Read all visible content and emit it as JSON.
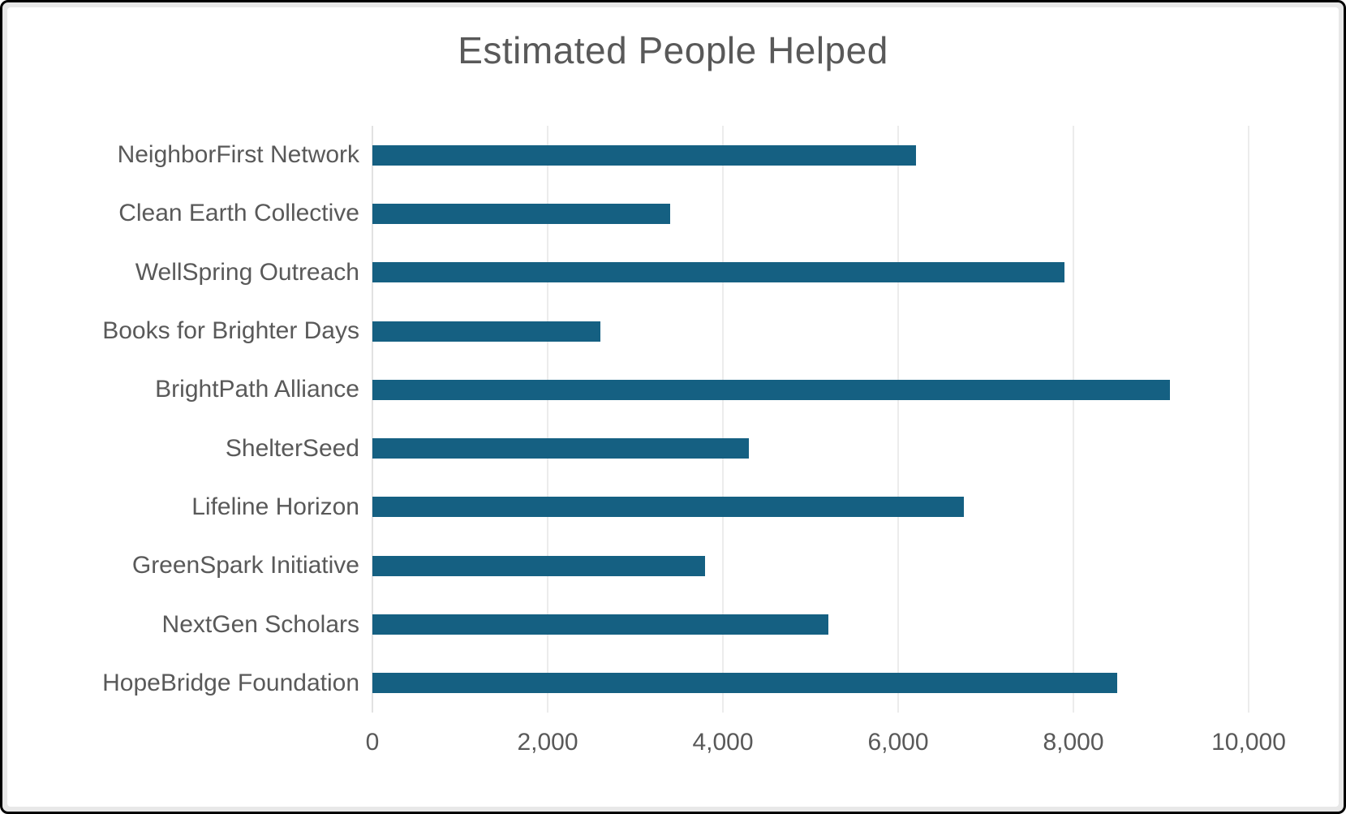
{
  "chart": {
    "title": "Estimated People Helped"
  },
  "chart_data": {
    "type": "bar",
    "orientation": "horizontal",
    "title": "Estimated People Helped",
    "categories": [
      "NeighborFirst Network",
      "Clean Earth Collective",
      "WellSpring Outreach",
      "Books for Brighter Days",
      "BrightPath Alliance",
      "ShelterSeed",
      "Lifeline Horizon",
      "GreenSpark Initiative",
      "NextGen Scholars",
      "HopeBridge Foundation"
    ],
    "values": [
      6200,
      3400,
      7900,
      2600,
      9100,
      4300,
      6750,
      3800,
      5200,
      8500
    ],
    "xlabel": "",
    "ylabel": "",
    "xlim": [
      0,
      10000
    ],
    "x_ticks": [
      0,
      2000,
      4000,
      6000,
      8000,
      10000
    ],
    "x_tick_labels": [
      "0",
      "2,000",
      "4,000",
      "6,000",
      "8,000",
      "10,000"
    ],
    "grid": "vertical-gridlines-on",
    "legend": "none",
    "colors": {
      "bar": "#156082",
      "text": "#595959",
      "gridline": "#d9d9d9",
      "axis_line": "#c6c6c6",
      "background": "#ffffff",
      "frame": "#000000"
    }
  }
}
